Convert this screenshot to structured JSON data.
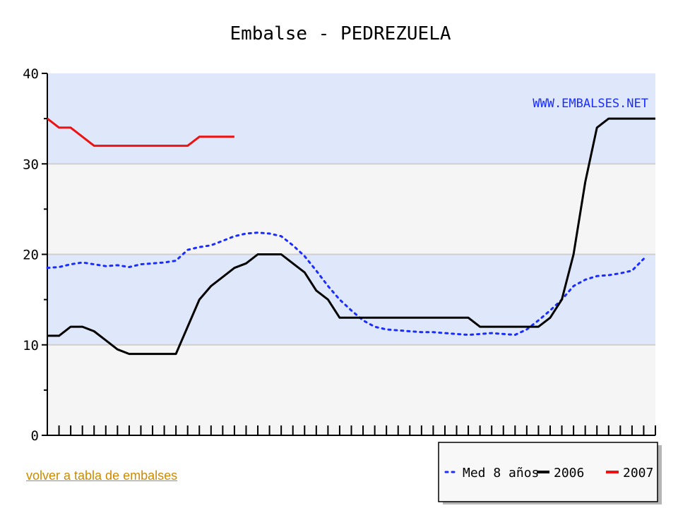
{
  "back_link": {
    "label": "volver a tabla de embalses"
  },
  "chart_data": {
    "type": "line",
    "title": "Embalse - PEDREZUELA",
    "watermark": "WWW.EMBALSES.NET",
    "xlabel": "",
    "ylabel": "",
    "ylim": [
      0,
      40
    ],
    "yticks": [
      0,
      10,
      20,
      30,
      40
    ],
    "xlim": [
      0,
      52
    ],
    "x_tick_count": 53,
    "grid": true,
    "band_colors": [
      "#f5f5f5",
      "#dfe8fb"
    ],
    "legend_position": "bottom-right",
    "series": [
      {
        "name": "Med 8 años",
        "style": "dotted",
        "color": "#1a2cff",
        "values": [
          18.5,
          18.6,
          18.9,
          19.1,
          18.9,
          18.7,
          18.8,
          18.6,
          18.9,
          19.0,
          19.1,
          19.3,
          20.5,
          20.8,
          21.0,
          21.5,
          22.0,
          22.3,
          22.4,
          22.3,
          22.0,
          21.0,
          19.8,
          18.2,
          16.5,
          15.0,
          13.8,
          12.7,
          12.0,
          11.7,
          11.6,
          11.5,
          11.4,
          11.4,
          11.3,
          11.2,
          11.1,
          11.2,
          11.3,
          11.2,
          11.1,
          11.7,
          12.7,
          13.8,
          15.0,
          16.5,
          17.2,
          17.6,
          17.7,
          17.9,
          18.2,
          19.5
        ]
      },
      {
        "name": "2006",
        "style": "solid",
        "color": "#000000",
        "values": [
          11,
          11,
          12,
          12,
          11.5,
          10.5,
          9.5,
          9,
          9,
          9,
          9,
          9,
          12,
          15,
          16.5,
          17.5,
          18.5,
          19,
          20,
          20,
          20,
          19,
          18,
          16,
          15,
          13,
          13,
          13,
          13,
          13,
          13,
          13,
          13,
          13,
          13,
          13,
          13,
          12,
          12,
          12,
          12,
          12,
          12,
          13,
          15,
          20,
          28,
          34,
          35,
          35,
          35,
          35,
          35
        ]
      },
      {
        "name": "2007",
        "style": "solid",
        "color": "#ee1111",
        "values": [
          35,
          34,
          34,
          33,
          32,
          32,
          32,
          32,
          32,
          32,
          32,
          32,
          32,
          33,
          33,
          33,
          33
        ]
      }
    ]
  }
}
